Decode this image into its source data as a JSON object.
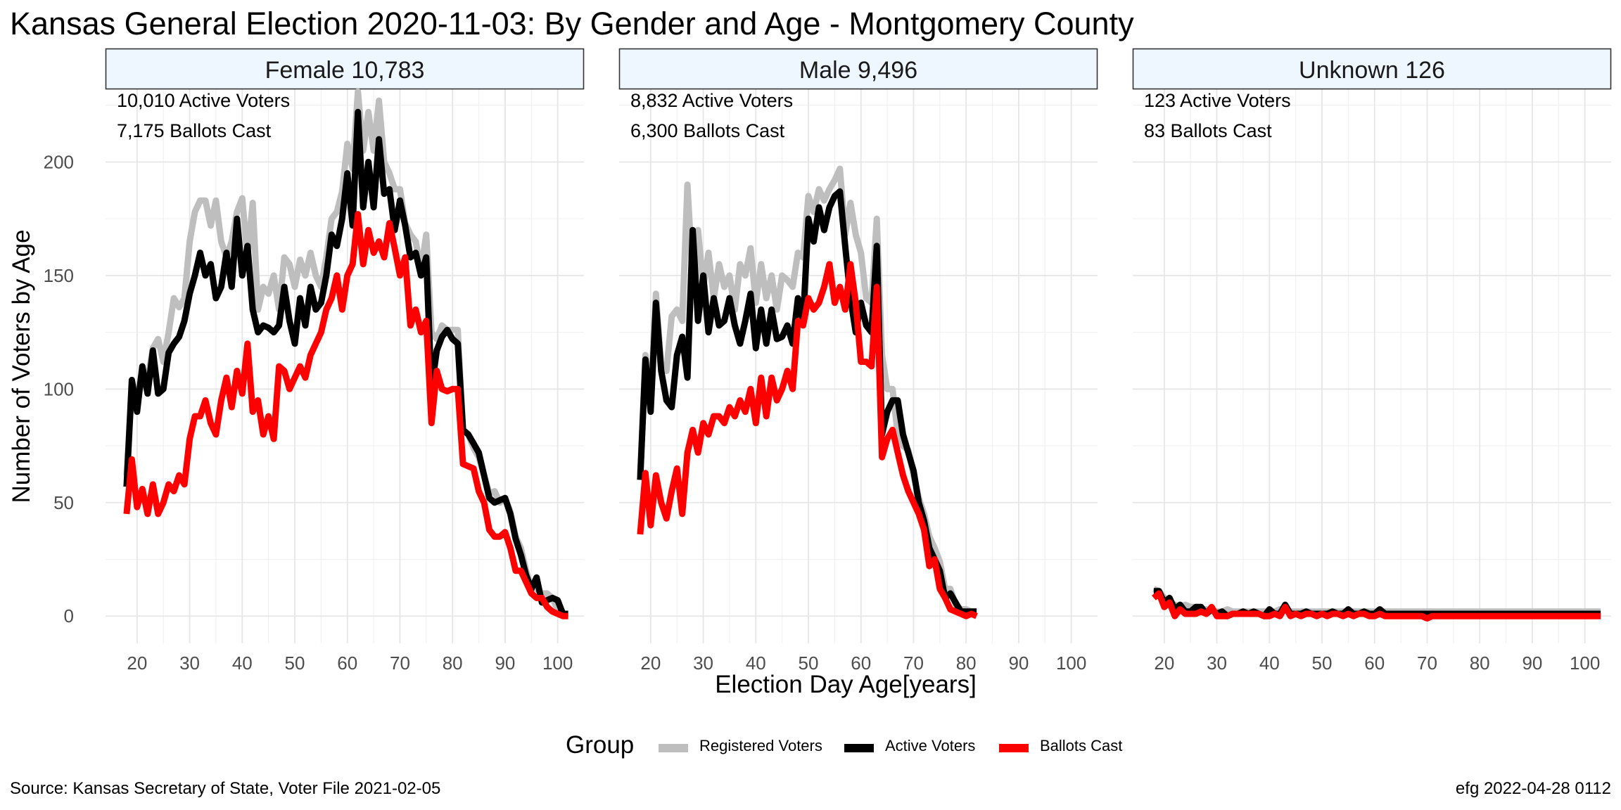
{
  "title": "Kansas General Election 2020-11-03:  By Gender and Age - Montgomery County",
  "source": "Source:  Kansas Secretary of State, Voter File  2021-02-05",
  "stamp": "efg 2022-04-28 0112",
  "legend": {
    "title": "Group",
    "items": [
      {
        "label": "Registered Voters",
        "color": "#bebebe"
      },
      {
        "label": "Active Voters",
        "color": "#000000"
      },
      {
        "label": "Ballots Cast",
        "color": "#ff0000"
      }
    ]
  },
  "chart_data": {
    "type": "line",
    "xlabel": "Election Day Age[years]",
    "ylabel": "Number of Voters by Age",
    "xlim": [
      14,
      105
    ],
    "ylim": [
      -12,
      232
    ],
    "x_ticks": [
      20,
      30,
      40,
      50,
      60,
      70,
      80,
      90,
      100
    ],
    "y_ticks": [
      0,
      50,
      100,
      150,
      200
    ],
    "grid": true,
    "legend_position": "bottom",
    "facet_strip_color": "#eef7ff",
    "panels": [
      {
        "strip": "Female 10,783",
        "annotations": [
          "10,010 Active Voters",
          "7,175 Ballots Cast"
        ],
        "x_start": 18,
        "series": [
          {
            "name": "Registered Voters",
            "color": "#bebebe",
            "values": [
              62,
              100,
              98,
              108,
              104,
              118,
              122,
              112,
              125,
              140,
              136,
              140,
              165,
              178,
              183,
              183,
              172,
              183,
              165,
              158,
              165,
              178,
              184,
              158,
              182,
              135,
              145,
              142,
              150,
              135,
              158,
              155,
              145,
              157,
              150,
              160,
              150,
              145,
              158,
              175,
              178,
              187,
              208,
              197,
              231,
              205,
              222,
              205,
              227,
              200,
              195,
              188,
              188,
              173,
              168,
              165,
              152,
              168,
              125,
              122,
              128,
              126,
              126,
              126,
              82,
              80,
              74,
              70,
              62,
              54,
              55,
              50,
              52,
              46,
              35,
              30,
              20,
              12,
              12,
              10,
              10,
              8,
              3,
              1,
              1
            ]
          },
          {
            "name": "Active Voters",
            "color": "#000000",
            "values": [
              57,
              104,
              90,
              110,
              98,
              117,
              98,
              100,
              116,
              120,
              123,
              130,
              142,
              150,
              160,
              150,
              155,
              140,
              145,
              160,
              145,
              175,
              150,
              163,
              135,
              125,
              128,
              127,
              125,
              128,
              145,
              130,
              120,
              140,
              128,
              145,
              135,
              138,
              150,
              168,
              163,
              175,
              195,
              172,
              222,
              180,
              200,
              180,
              210,
              186,
              188,
              170,
              183,
              172,
              158,
              160,
              150,
              158,
              100,
              117,
              123,
              126,
              122,
              120,
              82,
              80,
              76,
              72,
              62,
              52,
              50,
              51,
              52,
              45,
              34,
              27,
              18,
              12,
              17,
              6,
              7,
              8,
              7,
              1,
              1
            ]
          },
          {
            "name": "Ballots Cast",
            "color": "#ff0000",
            "values": [
              45,
              69,
              48,
              56,
              45,
              58,
              45,
              50,
              58,
              55,
              62,
              58,
              78,
              88,
              88,
              95,
              85,
              80,
              95,
              105,
              92,
              108,
              98,
              120,
              90,
              95,
              80,
              88,
              78,
              110,
              108,
              100,
              105,
              110,
              105,
              115,
              120,
              125,
              135,
              140,
              150,
              135,
              150,
              155,
              177,
              155,
              170,
              160,
              165,
              158,
              173,
              162,
              150,
              158,
              128,
              135,
              125,
              130,
              85,
              108,
              100,
              99,
              100,
              100,
              67,
              66,
              65,
              55,
              50,
              38,
              35,
              35,
              37,
              30,
              20,
              20,
              15,
              10,
              8,
              8,
              4,
              2,
              1,
              0,
              0
            ]
          }
        ]
      },
      {
        "strip": "Male 9,496",
        "annotations": [
          "8,832 Active Voters",
          "6,300 Ballots Cast"
        ],
        "x_start": 18,
        "series": [
          {
            "name": "Registered Voters",
            "color": "#bebebe",
            "values": [
              62,
              115,
              95,
              142,
              110,
              108,
              132,
              135,
              130,
              190,
              148,
              170,
              145,
              160,
              140,
              155,
              145,
              150,
              135,
              155,
              150,
              162,
              138,
              155,
              140,
              150,
              135,
              150,
              148,
              145,
              160,
              158,
              185,
              178,
              188,
              183,
              188,
              192,
              197,
              168,
              182,
              168,
              160,
              140,
              138,
              175,
              115,
              100,
              100,
              80,
              75,
              73,
              62,
              52,
              45,
              35,
              30,
              24,
              12,
              12,
              5,
              3,
              3,
              2,
              2
            ]
          },
          {
            "name": "Active Voters",
            "color": "#000000",
            "values": [
              60,
              113,
              90,
              138,
              108,
              95,
              92,
              115,
              123,
              105,
              170,
              130,
              150,
              125,
              140,
              128,
              130,
              140,
              128,
              120,
              130,
              142,
              118,
              135,
              120,
              135,
              122,
              123,
              128,
              120,
              140,
              130,
              175,
              165,
              180,
              170,
              180,
              185,
              187,
              163,
              140,
              125,
              138,
              128,
              125,
              163,
              80,
              90,
              95,
              95,
              80,
              72,
              64,
              50,
              42,
              30,
              25,
              20,
              8,
              10,
              6,
              2,
              2,
              2,
              2
            ]
          },
          {
            "name": "Ballots Cast",
            "color": "#ff0000",
            "values": [
              36,
              63,
              40,
              62,
              50,
              43,
              55,
              65,
              45,
              72,
              82,
              72,
              85,
              80,
              88,
              88,
              85,
              92,
              88,
              95,
              90,
              100,
              85,
              105,
              88,
              105,
              95,
              100,
              108,
              100,
              130,
              128,
              140,
              135,
              138,
              145,
              155,
              138,
              145,
              135,
              155,
              138,
              112,
              112,
              110,
              145,
              70,
              78,
              82,
              72,
              62,
              55,
              50,
              45,
              38,
              22,
              25,
              12,
              8,
              3,
              2,
              1,
              0,
              1,
              0
            ]
          }
        ]
      },
      {
        "strip": "Unknown 126",
        "annotations": [
          "123 Active Voters",
          "83 Ballots Cast"
        ],
        "x_start": 18,
        "series": [
          {
            "name": "Registered Voters",
            "color": "#bebebe",
            "values": [
              12,
              11,
              8,
              6,
              5,
              4,
              5,
              4,
              4,
              3,
              3,
              2,
              2,
              2,
              3,
              2,
              2,
              2,
              2,
              2,
              2,
              2,
              2,
              2,
              3,
              3,
              2,
              2,
              2,
              2,
              2,
              2,
              2,
              2,
              2,
              2,
              2,
              2,
              2,
              2,
              2,
              2,
              2,
              2,
              2,
              2,
              2,
              2,
              2,
              2,
              2,
              2,
              2,
              2,
              2,
              2,
              2,
              2,
              2,
              2,
              2,
              2,
              2,
              2,
              2,
              2,
              2,
              2,
              2,
              2,
              2,
              2,
              2,
              2,
              2,
              2,
              2,
              2,
              2,
              2,
              2,
              2,
              2,
              2,
              2,
              2
            ]
          },
          {
            "name": "Active Voters",
            "color": "#000000",
            "values": [
              11,
              11,
              6,
              8,
              3,
              5,
              2,
              2,
              4,
              4,
              1,
              3,
              1,
              2,
              0,
              1,
              1,
              2,
              1,
              2,
              1,
              0,
              3,
              1,
              1,
              5,
              1,
              1,
              1,
              2,
              1,
              1,
              1,
              1,
              2,
              1,
              1,
              3,
              1,
              1,
              2,
              1,
              1,
              3,
              1,
              1,
              1,
              1,
              1,
              1,
              1,
              1,
              1,
              1,
              1,
              1,
              1,
              1,
              1,
              1,
              1,
              1,
              1,
              1,
              1,
              1,
              1,
              1,
              1,
              1,
              1,
              1,
              1,
              1,
              1,
              1,
              1,
              1,
              1,
              1,
              1,
              1,
              1,
              1,
              1,
              1
            ]
          },
          {
            "name": "Ballots Cast",
            "color": "#ff0000",
            "values": [
              8,
              10,
              4,
              6,
              0,
              3,
              1,
              1,
              1,
              2,
              1,
              4,
              0,
              0,
              0,
              1,
              1,
              1,
              1,
              1,
              1,
              0,
              0,
              1,
              0,
              4,
              0,
              1,
              0,
              1,
              1,
              0,
              1,
              0,
              1,
              1,
              0,
              1,
              0,
              1,
              1,
              0,
              0,
              1,
              0,
              0,
              0,
              0,
              0,
              0,
              0,
              0,
              -1,
              0,
              0,
              0,
              0,
              0,
              0,
              0,
              0,
              0,
              0,
              0,
              0,
              0,
              0,
              0,
              0,
              0,
              0,
              0,
              0,
              0,
              0,
              0,
              0,
              0,
              0,
              0,
              0,
              0,
              0,
              0,
              0,
              0
            ]
          }
        ]
      }
    ]
  }
}
